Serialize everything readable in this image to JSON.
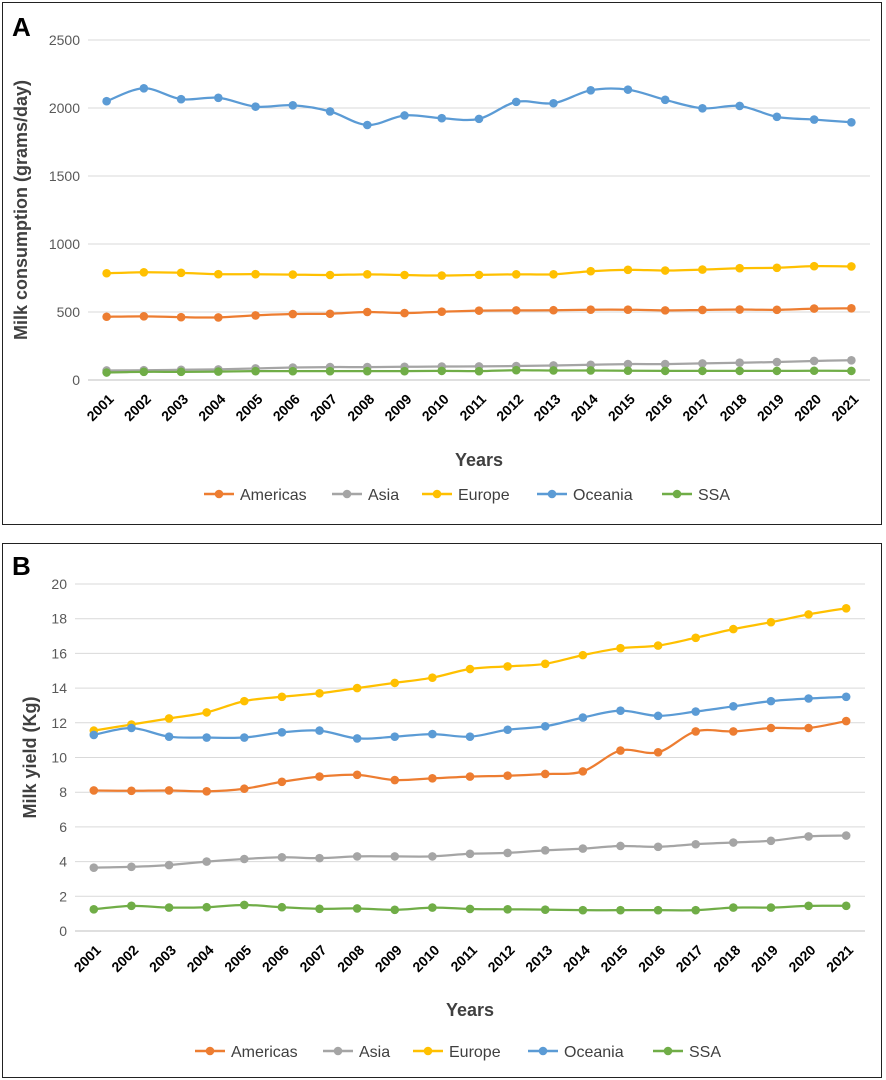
{
  "chart_data": [
    {
      "panel_label": "A",
      "type": "line",
      "title": "",
      "xlabel": "Years",
      "ylabel": "Milk consumption (grams/day)",
      "ylim": [
        0,
        2500
      ],
      "yticks": [
        "0",
        "500",
        "1000",
        "1500",
        "2000",
        "2500"
      ],
      "grid": true,
      "legend_position": "bottom",
      "categories": [
        "2001",
        "2002",
        "2003",
        "2004",
        "2005",
        "2006",
        "2007",
        "2008",
        "2009",
        "2010",
        "2011",
        "2012",
        "2013",
        "2014",
        "2015",
        "2016",
        "2017",
        "2018",
        "2019",
        "2020",
        "2021"
      ],
      "series": [
        {
          "name": "Americas",
          "color": "#ED7D31",
          "values": [
            465,
            468,
            462,
            460,
            475,
            485,
            487,
            500,
            492,
            502,
            510,
            512,
            513,
            517,
            517,
            512,
            515,
            518,
            516,
            525,
            527
          ]
        },
        {
          "name": "Asia",
          "color": "#A5A5A5",
          "values": [
            70,
            72,
            75,
            78,
            85,
            92,
            95,
            95,
            97,
            99,
            100,
            103,
            107,
            112,
            117,
            117,
            122,
            127,
            132,
            140,
            145
          ]
        },
        {
          "name": "Europe",
          "color": "#FFC000",
          "values": [
            785,
            792,
            788,
            778,
            778,
            775,
            772,
            777,
            772,
            768,
            773,
            777,
            777,
            800,
            810,
            805,
            812,
            822,
            825,
            837,
            835
          ]
        },
        {
          "name": "Oceania",
          "color": "#5B9BD5",
          "values": [
            2050,
            2145,
            2065,
            2075,
            2010,
            2020,
            1975,
            1875,
            1945,
            1925,
            1920,
            2045,
            2035,
            2130,
            2135,
            2060,
            1998,
            2015,
            1935,
            1915,
            1895
          ]
        },
        {
          "name": "SSA",
          "color": "#70AD47",
          "values": [
            55,
            60,
            60,
            62,
            65,
            65,
            65,
            65,
            65,
            67,
            65,
            72,
            70,
            70,
            68,
            67,
            67,
            67,
            67,
            68,
            67
          ]
        }
      ]
    },
    {
      "panel_label": "B",
      "type": "line",
      "title": "",
      "xlabel": "Years",
      "ylabel": "Milk yield (Kg)",
      "ylim": [
        0,
        20
      ],
      "yticks": [
        "0",
        "2",
        "4",
        "6",
        "8",
        "10",
        "12",
        "14",
        "16",
        "18",
        "20"
      ],
      "grid": true,
      "legend_position": "bottom",
      "categories": [
        "2001",
        "2002",
        "2003",
        "2004",
        "2005",
        "2006",
        "2007",
        "2008",
        "2009",
        "2010",
        "2011",
        "2012",
        "2013",
        "2014",
        "2015",
        "2016",
        "2017",
        "2018",
        "2019",
        "2020",
        "2021"
      ],
      "series": [
        {
          "name": "Americas",
          "color": "#ED7D31",
          "values": [
            8.1,
            8.08,
            8.1,
            8.05,
            8.2,
            8.6,
            8.9,
            9.0,
            8.7,
            8.8,
            8.9,
            8.95,
            9.05,
            9.2,
            10.4,
            10.3,
            11.5,
            11.5,
            11.7,
            11.7,
            12.1
          ]
        },
        {
          "name": "Asia",
          "color": "#A5A5A5",
          "values": [
            3.65,
            3.7,
            3.8,
            4.0,
            4.15,
            4.25,
            4.2,
            4.3,
            4.3,
            4.3,
            4.45,
            4.5,
            4.65,
            4.75,
            4.9,
            4.85,
            5.0,
            5.1,
            5.2,
            5.45,
            5.5
          ]
        },
        {
          "name": "Europe",
          "color": "#FFC000",
          "values": [
            11.55,
            11.9,
            12.25,
            12.6,
            13.25,
            13.5,
            13.7,
            14.0,
            14.3,
            14.6,
            15.1,
            15.25,
            15.4,
            15.9,
            16.3,
            16.45,
            16.9,
            17.4,
            17.8,
            18.25,
            18.6
          ]
        },
        {
          "name": "Oceania",
          "color": "#5B9BD5",
          "values": [
            11.3,
            11.7,
            11.2,
            11.15,
            11.15,
            11.45,
            11.55,
            11.1,
            11.2,
            11.35,
            11.2,
            11.6,
            11.8,
            12.3,
            12.7,
            12.4,
            12.65,
            12.95,
            13.25,
            13.4,
            13.5
          ]
        },
        {
          "name": "SSA",
          "color": "#70AD47",
          "values": [
            1.25,
            1.45,
            1.35,
            1.37,
            1.5,
            1.37,
            1.28,
            1.3,
            1.22,
            1.35,
            1.27,
            1.25,
            1.23,
            1.2,
            1.2,
            1.2,
            1.2,
            1.35,
            1.35,
            1.45,
            1.45
          ]
        }
      ]
    }
  ]
}
